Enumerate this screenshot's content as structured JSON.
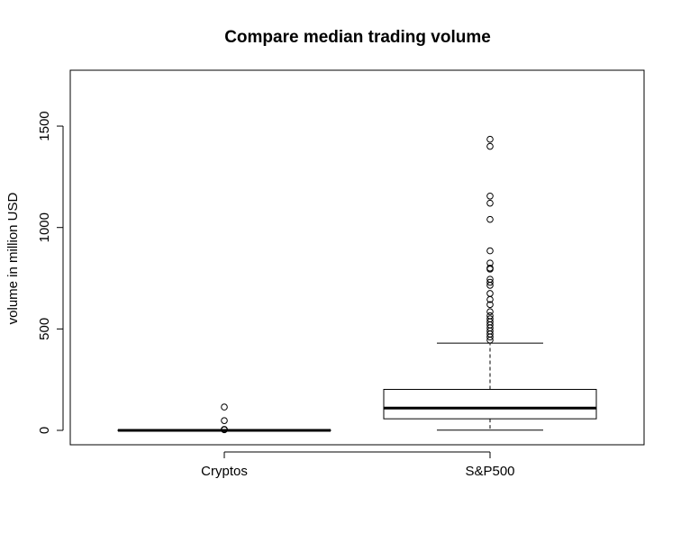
{
  "chart_data": {
    "type": "boxplot",
    "title": "Compare median trading volume",
    "xlabel": "",
    "ylabel": "volume in million USD",
    "ylim": [
      0,
      1700
    ],
    "y_ticks": [
      0,
      500,
      1000,
      1500
    ],
    "y_tick_labels": [
      "0",
      "500",
      "1000",
      "1500"
    ],
    "categories": [
      "Cryptos",
      "S&P500"
    ],
    "grid": false,
    "series": [
      {
        "category": "Cryptos",
        "whisker_low": 0,
        "q1": 0,
        "median": 0,
        "q3": 1,
        "whisker_high": 2,
        "outliers": [
          115,
          48,
          5,
          3
        ]
      },
      {
        "category": "S&P500",
        "whisker_low": 1,
        "q1": 57,
        "median": 110,
        "q3": 202,
        "whisker_high": 430,
        "outliers": [
          1435,
          1400,
          1155,
          1120,
          1040,
          885,
          825,
          800,
          795,
          745,
          730,
          715,
          675,
          645,
          620,
          585,
          565,
          550,
          535,
          520,
          505,
          490,
          475,
          460,
          445
        ]
      }
    ]
  }
}
